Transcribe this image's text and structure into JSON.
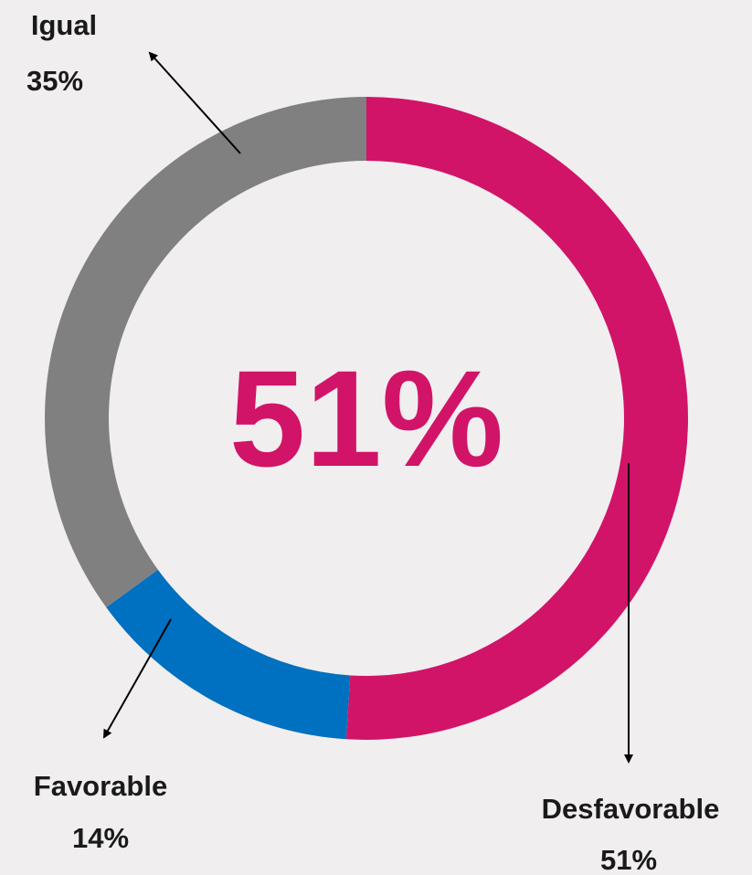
{
  "chart_data": {
    "type": "pie",
    "donut": true,
    "center_label": "51%",
    "center_color": "#d11468",
    "slices": [
      {
        "name": "Desfavorable",
        "value": 51,
        "value_label": "51%",
        "color": "#d11468"
      },
      {
        "name": "Favorable",
        "value": 14,
        "value_label": "14%",
        "color": "#0070c0"
      },
      {
        "name": "Igual",
        "value": 35,
        "value_label": "35%",
        "color": "#808080"
      }
    ],
    "start_angle_deg": 0,
    "direction": "clockwise"
  }
}
